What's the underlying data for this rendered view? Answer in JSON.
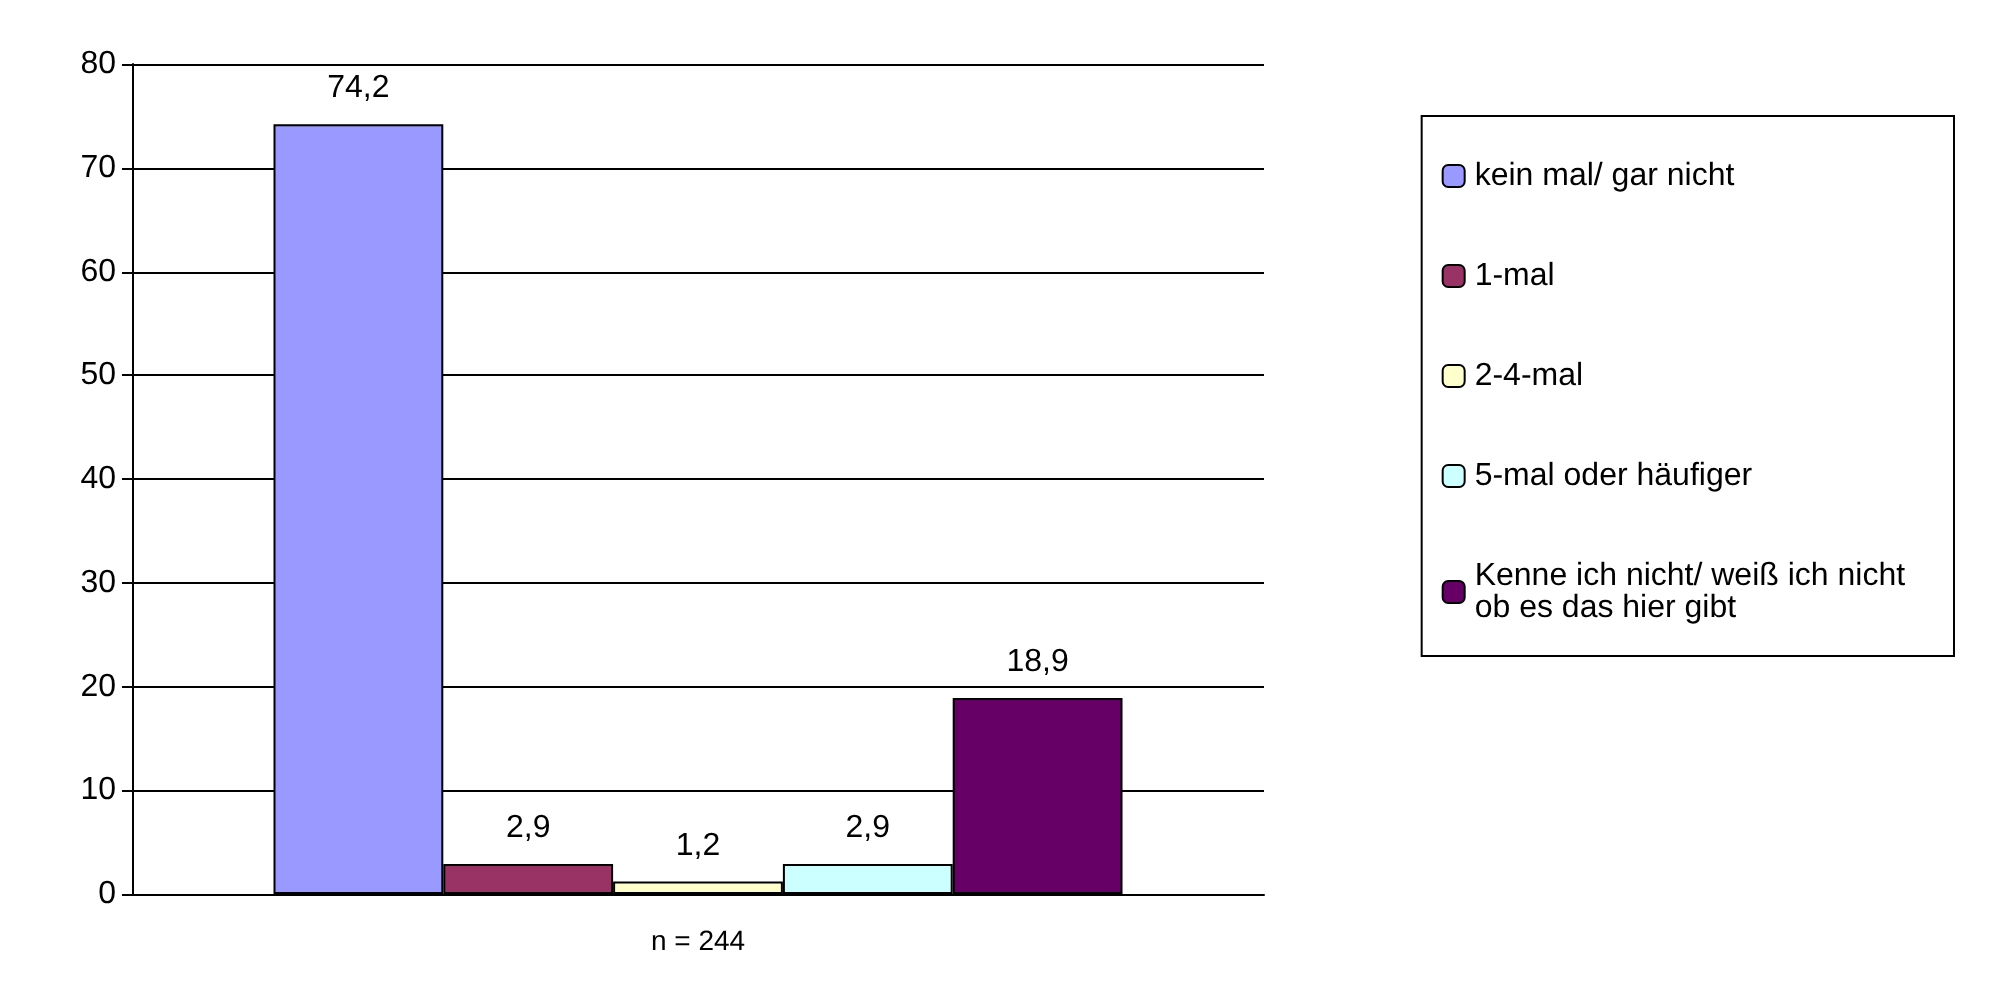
{
  "chart_data": {
    "type": "bar",
    "categories": [
      "n = 244"
    ],
    "ylim": [
      0,
      80
    ],
    "yticks": [
      0,
      10,
      20,
      30,
      40,
      50,
      60,
      70,
      80
    ],
    "grid": "y",
    "legend": "right",
    "series": [
      {
        "name": "kein mal/ gar nicht",
        "color": "#9999ff",
        "values": [
          74.2
        ],
        "value_labels": [
          "74,2"
        ]
      },
      {
        "name": "1-mal",
        "color": "#993366",
        "values": [
          2.9
        ],
        "value_labels": [
          "2,9"
        ]
      },
      {
        "name": "2-4-mal",
        "color": "#ffffcc",
        "values": [
          1.2
        ],
        "value_labels": [
          "1,2"
        ]
      },
      {
        "name": "5-mal oder häufiger",
        "color": "#ccffff",
        "values": [
          2.9
        ],
        "value_labels": [
          "2,9"
        ]
      },
      {
        "name": "Kenne ich nicht/ weiß ich nicht ob es das hier gibt",
        "color": "#660066",
        "values": [
          18.9
        ],
        "value_labels": [
          "18,9"
        ]
      }
    ]
  }
}
